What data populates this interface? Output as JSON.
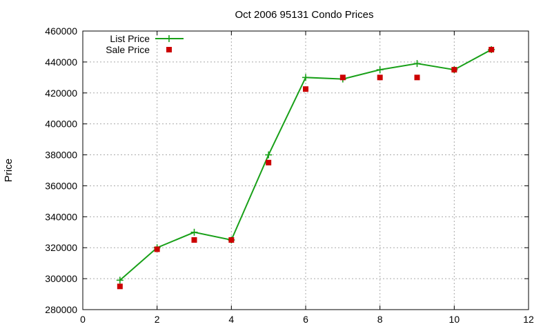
{
  "chart_data": {
    "type": "line",
    "title": "Oct 2006 95131 Condo Prices",
    "xlabel": "",
    "ylabel": "Price",
    "xlim": [
      0,
      12
    ],
    "ylim": [
      280000,
      460000
    ],
    "xticks": [
      0,
      2,
      4,
      6,
      8,
      10,
      12
    ],
    "yticks": [
      280000,
      300000,
      320000,
      340000,
      360000,
      380000,
      400000,
      420000,
      440000,
      460000
    ],
    "grid": true,
    "legend_position": "top-left",
    "series": [
      {
        "name": "List Price",
        "style": "line+cross",
        "color": "#18a018",
        "x": [
          1,
          2,
          3,
          4,
          5,
          6,
          7,
          8,
          9,
          10,
          11
        ],
        "y": [
          299000,
          320000,
          330000,
          325000,
          380000,
          430000,
          429000,
          435000,
          439000,
          435000,
          448000
        ]
      },
      {
        "name": "Sale Price",
        "style": "square-points",
        "color": "#cc0000",
        "x": [
          1,
          2,
          3,
          4,
          5,
          6,
          7,
          8,
          9,
          10,
          11
        ],
        "y": [
          295000,
          319000,
          325000,
          325000,
          375000,
          422500,
          430000,
          430000,
          430000,
          435000,
          448000
        ]
      }
    ]
  }
}
